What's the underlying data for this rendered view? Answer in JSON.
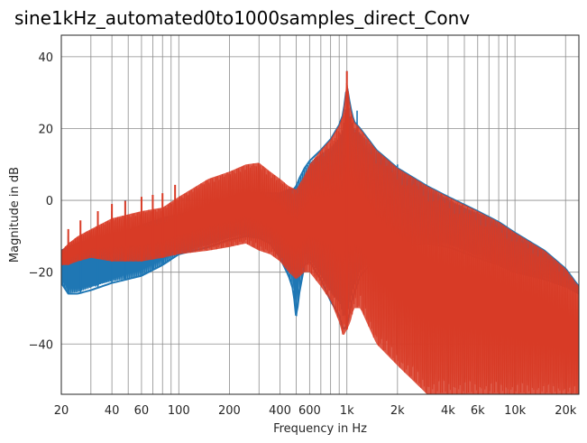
{
  "chart_data": {
    "type": "line",
    "title": "sine1kHz_automated0to1000samples_direct_Conv",
    "xlabel": "Frequency in Hz",
    "ylabel": "Magnitude in dB",
    "x_scale": "log",
    "xlim": [
      20,
      24000
    ],
    "ylim": [
      -54,
      46
    ],
    "grid": true,
    "legend": "none",
    "x_ticks": [
      {
        "value": 20,
        "label": "20"
      },
      {
        "value": 40,
        "label": "40"
      },
      {
        "value": 60,
        "label": "60"
      },
      {
        "value": 100,
        "label": "100"
      },
      {
        "value": 200,
        "label": "200"
      },
      {
        "value": 400,
        "label": "400"
      },
      {
        "value": 600,
        "label": "600"
      },
      {
        "value": 1000,
        "label": "1k"
      },
      {
        "value": 2000,
        "label": "2k"
      },
      {
        "value": 4000,
        "label": "4k"
      },
      {
        "value": 6000,
        "label": "6k"
      },
      {
        "value": 10000,
        "label": "10k"
      },
      {
        "value": 20000,
        "label": "20k"
      }
    ],
    "x_minor_ticks": [
      30,
      50,
      70,
      80,
      90,
      300,
      500,
      700,
      800,
      900,
      3000,
      5000,
      7000,
      8000,
      9000
    ],
    "y_ticks": [
      {
        "value": 40,
        "label": "40"
      },
      {
        "value": 20,
        "label": "20"
      },
      {
        "value": 0,
        "label": "0"
      },
      {
        "value": -20,
        "label": "−20"
      },
      {
        "value": -40,
        "label": "−40"
      }
    ],
    "series": [
      {
        "color": "#1f77b4",
        "envelope": {
          "x": [
            20,
            22,
            25,
            30,
            40,
            60,
            80,
            100,
            150,
            200,
            250,
            300,
            350,
            400,
            450,
            480,
            500,
            520,
            560,
            600,
            700,
            800,
            900,
            950,
            1000,
            1050,
            1100,
            1200,
            1500,
            2000,
            3000,
            4000,
            6000,
            8000,
            10000,
            15000,
            20000,
            24000
          ],
          "upper": [
            -14,
            -13,
            -12,
            -11,
            -10,
            -7,
            -5,
            -4,
            -2,
            1,
            2,
            2,
            2,
            2,
            3,
            3,
            4,
            6,
            9,
            11,
            14,
            17,
            21,
            24,
            32,
            26,
            22,
            20,
            14,
            9,
            4,
            1,
            -3,
            -6,
            -9,
            -14,
            -19,
            -24
          ],
          "lower": [
            -23,
            -26,
            -26,
            -25,
            -23,
            -21,
            -18,
            -15,
            -13,
            -11,
            -10,
            -10.5,
            -12,
            -16,
            -21,
            -25,
            -33,
            -26,
            -18,
            -17,
            -22,
            -28,
            -32,
            -36,
            -35,
            -30,
            -26,
            -21,
            -16,
            -13,
            -12,
            -13,
            -16,
            -18,
            -20,
            -22,
            -24,
            -26
          ],
          "peaks": [
            {
              "x": 22,
              "y": -10
            },
            {
              "x": 26,
              "y": -9
            },
            {
              "x": 33,
              "y": -8
            },
            {
              "x": 40,
              "y": -3
            },
            {
              "x": 48,
              "y": 0
            },
            {
              "x": 60,
              "y": -3
            },
            {
              "x": 70,
              "y": -4
            },
            {
              "x": 80,
              "y": -3
            },
            {
              "x": 1000,
              "y": 36
            },
            {
              "x": 1150,
              "y": 25
            },
            {
              "x": 1600,
              "y": 13
            },
            {
              "x": 2000,
              "y": 10
            },
            {
              "x": 2500,
              "y": 6
            },
            {
              "x": 3000,
              "y": 4
            },
            {
              "x": 4000,
              "y": 1
            },
            {
              "x": 5000,
              "y": -2
            },
            {
              "x": 6500,
              "y": -5
            },
            {
              "x": 8000,
              "y": -8
            },
            {
              "x": 10000,
              "y": -10
            },
            {
              "x": 13000,
              "y": -13
            },
            {
              "x": 16000,
              "y": -15
            },
            {
              "x": 20000,
              "y": -19
            }
          ]
        }
      },
      {
        "color": "#d83b26",
        "envelope": {
          "x": [
            20,
            22,
            25,
            30,
            40,
            60,
            80,
            100,
            150,
            200,
            250,
            300,
            350,
            400,
            450,
            500,
            560,
            600,
            700,
            800,
            900,
            950,
            1000,
            1050,
            1100,
            1200,
            1500,
            2000,
            3000,
            4000,
            6000,
            8000,
            10000,
            15000,
            20000,
            24000
          ],
          "upper": [
            -14,
            -12,
            -10,
            -8,
            -5,
            -3,
            -2,
            1,
            6,
            8,
            10,
            10.5,
            8,
            6,
            4,
            3,
            7,
            10,
            14,
            17,
            21,
            24,
            34,
            26,
            22,
            20,
            14,
            9,
            4,
            1,
            -3,
            -6,
            -9,
            -14,
            -19,
            -24
          ],
          "lower": [
            -18,
            -18,
            -17,
            -16,
            -17,
            -17,
            -16,
            -15,
            -14,
            -13,
            -12,
            -14,
            -15,
            -17,
            -20,
            -22,
            -20,
            -20,
            -24,
            -28,
            -34,
            -38,
            -36,
            -34,
            -30,
            -30,
            -40,
            -46,
            -54,
            -54,
            -54,
            -54,
            -54,
            -54,
            -54,
            -54
          ]
        }
      }
    ]
  }
}
